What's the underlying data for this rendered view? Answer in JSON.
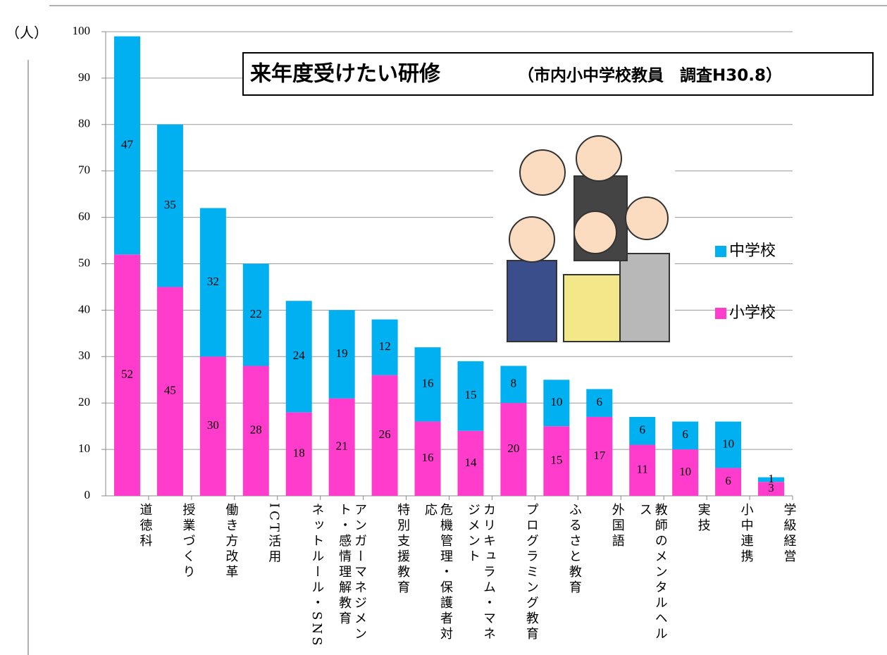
{
  "chart_data": {
    "type": "stacked-bar",
    "title": "来年度受けたい研修",
    "subtitle": "（市内小中学校教員　調査H30.8）",
    "y_label": "（人）",
    "categories": [
      "道徳科",
      "授業づくり",
      "働き方改革",
      "ICT活用",
      "ネットルール・SNS",
      "アンガーマネジメント・感情理解教育",
      "特別支援教育",
      "危機管理・保護者対応",
      "カリキュラム・マネジメント",
      "プログラミング教育",
      "ふるさと教育",
      "外国語",
      "教師のメンタルヘルス",
      "実技",
      "小中連携",
      "学級経営"
    ],
    "series": [
      {
        "name": "小学校",
        "color": "#ff3ccc",
        "values": [
          52,
          45,
          30,
          28,
          18,
          21,
          26,
          16,
          14,
          20,
          15,
          17,
          11,
          10,
          6,
          3
        ]
      },
      {
        "name": "中学校",
        "color": "#00b0f0",
        "values": [
          47,
          35,
          32,
          22,
          24,
          19,
          12,
          16,
          15,
          8,
          10,
          6,
          6,
          6,
          10,
          1
        ]
      }
    ],
    "ylim": [
      0,
      100
    ],
    "yticks": [
      0,
      10,
      20,
      30,
      40,
      50,
      60,
      70,
      80,
      90,
      100
    ],
    "grid": true
  }
}
